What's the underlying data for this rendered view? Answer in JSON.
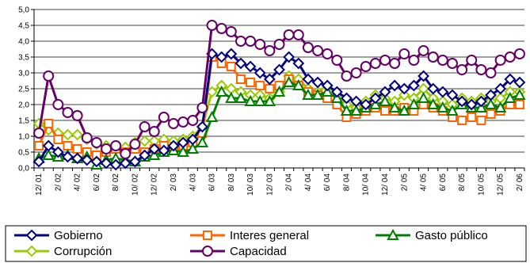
{
  "chart_data": {
    "type": "line",
    "x": [
      "12/01",
      "1/02",
      "2/02",
      "3/02",
      "4/02",
      "5/02",
      "6/02",
      "7/02",
      "8/02",
      "9/02",
      "10/02",
      "11/02",
      "12/02",
      "1/03",
      "2/03",
      "3/03",
      "4/03",
      "5/03",
      "6/03",
      "7/03",
      "8/03",
      "9/03",
      "10/03",
      "11/03",
      "12/03",
      "1/04",
      "2/04",
      "3/04",
      "4/04",
      "5/04",
      "6/04",
      "7/04",
      "8/04",
      "9/04",
      "10/04",
      "11/04",
      "12/04",
      "1/05",
      "2/05",
      "3/05",
      "4/05",
      "5/05",
      "6/05",
      "7/05",
      "8/05",
      "9/05",
      "10/05",
      "11/05",
      "12/05",
      "1/06",
      "2/06"
    ],
    "tick_labels": [
      "12/ 01",
      "2/ 02",
      "4/ 02",
      "6/ 02",
      "8/ 02",
      "10/ 02",
      "12/ 02",
      "2/ 03",
      "4/ 03",
      "6/ 03",
      "8/ 03",
      "10/ 03",
      "12/ 03",
      "2/ 04",
      "4/ 04",
      "6/ 04",
      "8/ 04",
      "10/ 04",
      "12/ 04",
      "2/ 05",
      "4/ 05",
      "6/ 05",
      "8/ 05",
      "10/ 05",
      "12/ 05",
      "2/ 06"
    ],
    "ylim": [
      0,
      5
    ],
    "yticks": [
      "0,0",
      "0,5",
      "1,0",
      "1,5",
      "2,0",
      "2,5",
      "3,0",
      "3,5",
      "4,0",
      "4,5",
      "5,0"
    ],
    "grid": "horizontal",
    "legend_position": "bottom",
    "series": [
      {
        "name": "Gobierno",
        "color": "#000080",
        "marker": "diamond",
        "values": [
          0.2,
          0.7,
          0.5,
          0.35,
          0.3,
          0.25,
          0.2,
          0.15,
          0.1,
          0.15,
          0.2,
          0.4,
          0.6,
          0.55,
          0.7,
          0.8,
          0.9,
          1.3,
          3.6,
          3.5,
          3.6,
          3.3,
          3.2,
          3.0,
          2.8,
          3.1,
          3.5,
          3.3,
          2.8,
          2.7,
          2.6,
          2.4,
          2.2,
          2.1,
          2.0,
          2.2,
          2.4,
          2.6,
          2.5,
          2.6,
          2.9,
          2.5,
          2.4,
          2.3,
          2.1,
          2.0,
          2.1,
          2.3,
          2.5,
          2.8,
          2.7
        ]
      },
      {
        "name": "Interes general",
        "color": "#FF6600",
        "marker": "square",
        "values": [
          0.7,
          1.4,
          0.9,
          0.7,
          0.6,
          0.5,
          0.4,
          0.5,
          0.6,
          0.5,
          0.6,
          0.5,
          0.6,
          0.7,
          0.6,
          0.7,
          0.8,
          1.1,
          3.5,
          3.3,
          3.2,
          2.8,
          2.7,
          2.6,
          2.5,
          2.6,
          2.8,
          2.6,
          2.4,
          2.3,
          2.2,
          2.0,
          1.6,
          1.7,
          1.8,
          1.9,
          1.8,
          1.8,
          1.9,
          1.8,
          2.0,
          1.9,
          1.8,
          1.6,
          1.5,
          1.6,
          1.5,
          1.7,
          1.8,
          2.0,
          2.0
        ]
      },
      {
        "name": "Gasto público",
        "color": "#008000",
        "marker": "triangle",
        "values": [
          0.3,
          0.4,
          0.35,
          0.4,
          0.3,
          0.35,
          0.1,
          0.25,
          0.3,
          0.25,
          0.2,
          0.35,
          0.4,
          0.5,
          0.55,
          0.5,
          0.6,
          0.8,
          1.6,
          2.4,
          2.2,
          2.2,
          2.1,
          2.1,
          2.1,
          2.4,
          2.7,
          2.6,
          2.3,
          2.3,
          2.4,
          2.2,
          1.8,
          1.8,
          1.9,
          2.0,
          2.1,
          1.9,
          1.8,
          2.0,
          2.2,
          2.0,
          1.9,
          1.8,
          2.0,
          1.9,
          1.9,
          2.0,
          1.9,
          2.2,
          2.3
        ]
      },
      {
        "name": "Corrupción",
        "color": "#99CC00",
        "marker": "diamond",
        "values": [
          1.4,
          1.2,
          1.1,
          1.05,
          1.05,
          0.9,
          0.75,
          0.7,
          0.7,
          0.65,
          0.8,
          0.85,
          0.85,
          0.9,
          0.85,
          0.9,
          1.0,
          1.3,
          2.4,
          2.6,
          2.5,
          2.4,
          2.3,
          2.3,
          2.2,
          2.4,
          2.9,
          2.8,
          2.5,
          2.4,
          2.6,
          2.3,
          2.0,
          1.9,
          2.1,
          2.3,
          2.2,
          2.1,
          2.3,
          2.2,
          2.5,
          2.2,
          2.1,
          2.0,
          2.2,
          2.1,
          2.2,
          2.1,
          2.2,
          2.4,
          2.4
        ]
      },
      {
        "name": "Capacidad",
        "color": "#660066",
        "marker": "circle",
        "values": [
          1.1,
          2.9,
          2.0,
          1.75,
          1.65,
          0.95,
          0.8,
          0.6,
          0.7,
          0.45,
          0.75,
          1.3,
          1.15,
          1.6,
          1.4,
          1.45,
          1.5,
          1.9,
          4.5,
          4.4,
          4.3,
          4.0,
          4.0,
          3.9,
          3.7,
          3.9,
          4.2,
          4.2,
          3.8,
          3.7,
          3.6,
          3.4,
          2.9,
          3.0,
          3.2,
          3.3,
          3.4,
          3.3,
          3.6,
          3.4,
          3.7,
          3.5,
          3.4,
          3.3,
          3.1,
          3.4,
          3.1,
          3.0,
          3.4,
          3.5,
          3.6
        ]
      }
    ]
  }
}
